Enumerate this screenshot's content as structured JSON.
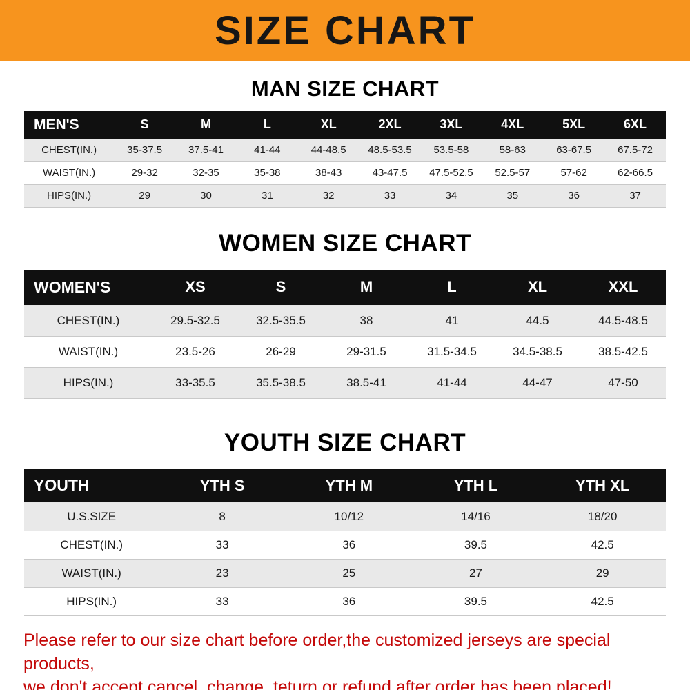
{
  "banner": {
    "title": "SIZE CHART",
    "bg_color": "#F7941E",
    "text_color": "#161616"
  },
  "chart_data": [
    {
      "type": "table",
      "title": "MAN SIZE CHART",
      "header_bg": "#101010",
      "stripe_color": "#E9E9E9",
      "header": [
        "MEN'S",
        "S",
        "M",
        "L",
        "XL",
        "2XL",
        "3XL",
        "4XL",
        "5XL",
        "6XL"
      ],
      "rows": [
        [
          "CHEST(IN.)",
          "35-37.5",
          "37.5-41",
          "41-44",
          "44-48.5",
          "48.5-53.5",
          "53.5-58",
          "58-63",
          "63-67.5",
          "67.5-72"
        ],
        [
          "WAIST(IN.)",
          "29-32",
          "32-35",
          "35-38",
          "38-43",
          "43-47.5",
          "47.5-52.5",
          "52.5-57",
          "57-62",
          "62-66.5"
        ],
        [
          "HIPS(IN.)",
          "29",
          "30",
          "31",
          "32",
          "33",
          "34",
          "35",
          "36",
          "37"
        ]
      ]
    },
    {
      "type": "table",
      "title": "WOMEN SIZE CHART",
      "header_bg": "#101010",
      "stripe_color": "#E9E9E9",
      "header": [
        "WOMEN'S",
        "XS",
        "S",
        "M",
        "L",
        "XL",
        "XXL"
      ],
      "rows": [
        [
          "CHEST(IN.)",
          "29.5-32.5",
          "32.5-35.5",
          "38",
          "41",
          "44.5",
          "44.5-48.5"
        ],
        [
          "WAIST(IN.)",
          "23.5-26",
          "26-29",
          "29-31.5",
          "31.5-34.5",
          "34.5-38.5",
          "38.5-42.5"
        ],
        [
          "HIPS(IN.)",
          "33-35.5",
          "35.5-38.5",
          "38.5-41",
          "41-44",
          "44-47",
          "47-50"
        ]
      ]
    },
    {
      "type": "table",
      "title": "YOUTH SIZE CHART",
      "header_bg": "#101010",
      "stripe_color": "#E9E9E9",
      "header": [
        "YOUTH",
        "YTH S",
        "YTH M",
        "YTH L",
        "YTH XL"
      ],
      "rows": [
        [
          "U.S.SIZE",
          "8",
          "10/12",
          "14/16",
          "18/20"
        ],
        [
          "CHEST(IN.)",
          "33",
          "36",
          "39.5",
          "42.5"
        ],
        [
          "WAIST(IN.)",
          "23",
          "25",
          "27",
          "29"
        ],
        [
          "HIPS(IN.)",
          "33",
          "36",
          "39.5",
          "42.5"
        ]
      ]
    }
  ],
  "footer": {
    "line1": "Please refer to our size chart before order,the customized jerseys are special products,",
    "line2": "we don't accept cancel, change, teturn or refund after order has been placed!",
    "text_color": "#C40808"
  }
}
